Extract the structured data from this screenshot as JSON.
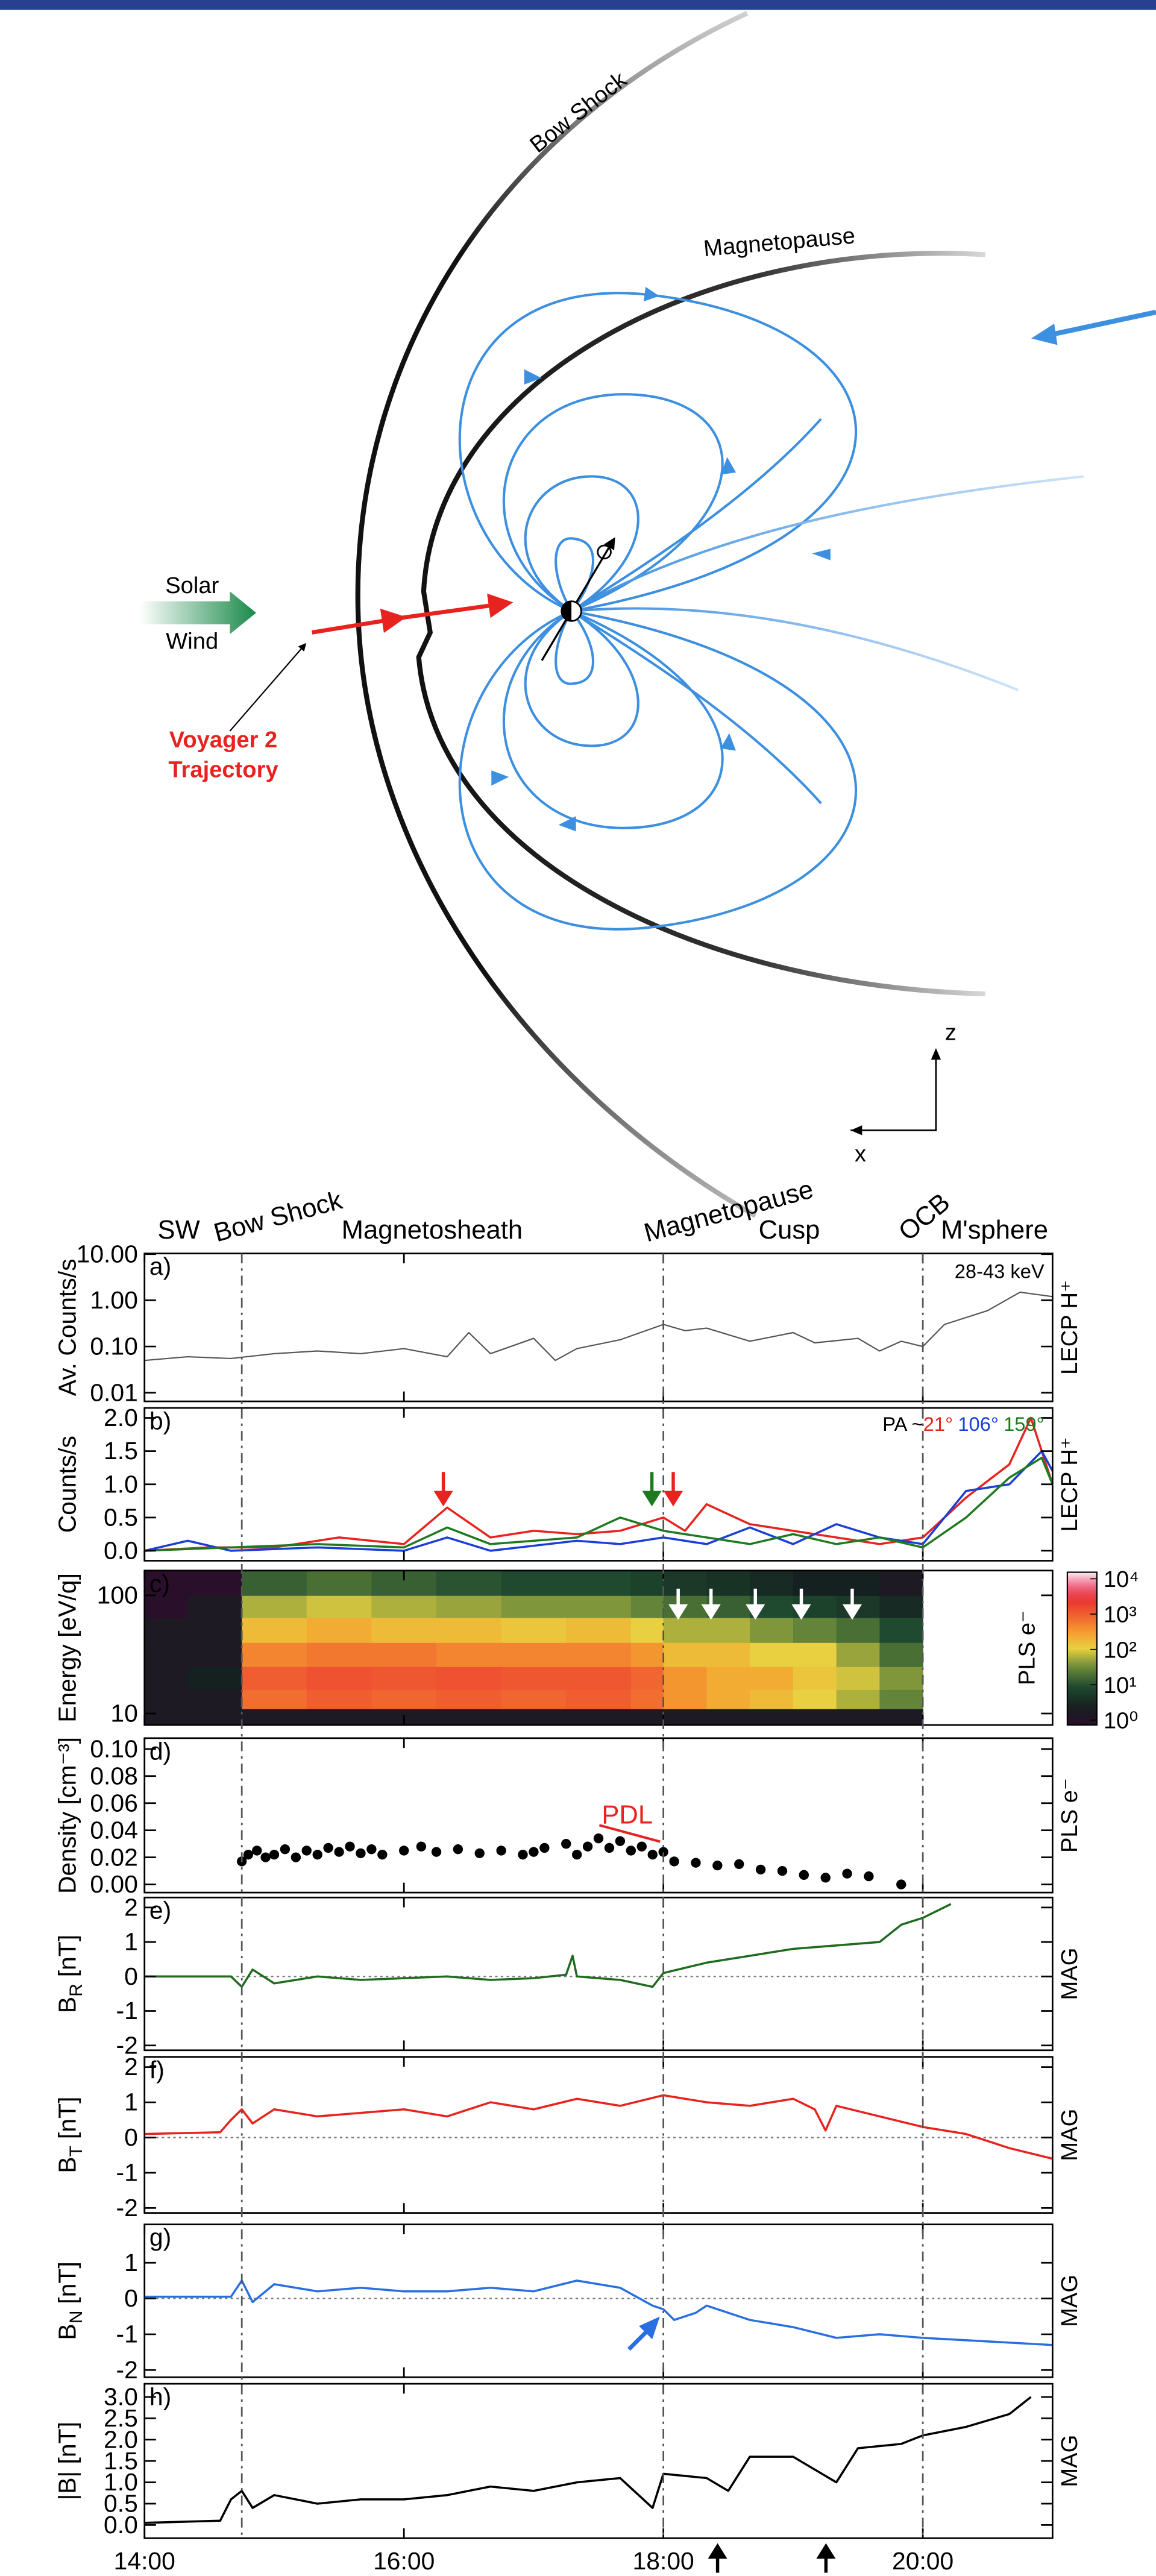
{
  "diagram": {
    "bow_shock": "Bow Shock",
    "magnetopause": "Magnetopause",
    "solar": "Solar",
    "wind": "Wind",
    "voyager": "Voyager 2",
    "trajectory": "Trajectory",
    "axis_z": "z",
    "axis_x": "x"
  },
  "regions": [
    "SW",
    "Bow Shock",
    "Magnetosheath",
    "Magnetopause",
    "Cusp",
    "OCB",
    "M'sphere"
  ],
  "boundaries": [
    "14:45",
    "18:00",
    "20:00"
  ],
  "chart_data": [
    {
      "type": "line",
      "label": "a)",
      "ylabel": "Av. Counts/s",
      "instrument": "LECP H⁺",
      "annotation": "28-43 keV",
      "log_y": true,
      "xlim": [
        "14:00",
        "21:00"
      ],
      "ylim": [
        0.0065,
        10.3
      ],
      "yticks": [
        {
          "value": 10,
          "label": "10.00"
        },
        {
          "value": 1,
          "label": "1.00"
        },
        {
          "value": 0.1,
          "label": "0.10"
        },
        0.01
      ],
      "series": [
        {
          "color": "#555555",
          "x": [
            "14:00",
            "14:20",
            "14:40",
            "15:00",
            "15:20",
            "15:40",
            "16:00",
            "16:20",
            "16:30",
            "16:40",
            "17:00",
            "17:10",
            "17:20",
            "17:40",
            "18:00",
            "18:10",
            "18:20",
            "18:40",
            "19:00",
            "19:10",
            "19:30",
            "19:40",
            "19:50",
            "20:00",
            "20:10",
            "20:30",
            "20:45",
            "21:00"
          ],
          "values": [
            0.05,
            0.06,
            0.055,
            0.07,
            0.08,
            0.07,
            0.09,
            0.06,
            0.2,
            0.07,
            0.15,
            0.05,
            0.09,
            0.14,
            0.3,
            0.22,
            0.25,
            0.13,
            0.2,
            0.12,
            0.15,
            0.08,
            0.13,
            0.1,
            0.3,
            0.6,
            1.5,
            1.2
          ]
        }
      ]
    },
    {
      "type": "line",
      "label": "b)",
      "ylabel": "Counts/s",
      "instrument": "LECP H⁺",
      "legend_prefix": "PA ~",
      "xlim": [
        "14:00",
        "21:00"
      ],
      "ylim": [
        -0.15,
        2.15
      ],
      "yticks": [
        {
          "value": 0,
          "label": "0.0"
        },
        0.5,
        {
          "value": 1,
          "label": "1.0"
        },
        1.5,
        {
          "value": 2,
          "label": "2.0"
        }
      ],
      "series": [
        {
          "name": "21°",
          "color": "#e8231f",
          "x": [
            "14:00",
            "14:30",
            "15:00",
            "15:30",
            "16:00",
            "16:20",
            "16:40",
            "17:00",
            "17:20",
            "17:40",
            "18:00",
            "18:10",
            "18:20",
            "18:40",
            "19:00",
            "19:20",
            "19:40",
            "20:00",
            "20:20",
            "20:40",
            "20:50",
            "21:00"
          ],
          "values": [
            0.0,
            0.05,
            0.05,
            0.2,
            0.1,
            0.65,
            0.2,
            0.3,
            0.25,
            0.3,
            0.5,
            0.3,
            0.7,
            0.4,
            0.3,
            0.2,
            0.1,
            0.2,
            0.8,
            1.3,
            2.0,
            1.0
          ]
        },
        {
          "name": "106°",
          "color": "#1a3fd8",
          "x": [
            "14:00",
            "14:20",
            "14:40",
            "15:20",
            "16:00",
            "16:20",
            "16:40",
            "17:20",
            "17:40",
            "18:00",
            "18:20",
            "18:40",
            "19:00",
            "19:20",
            "19:40",
            "20:00",
            "20:20",
            "20:40",
            "20:55",
            "21:00"
          ],
          "values": [
            0.0,
            0.15,
            0.0,
            0.05,
            0.0,
            0.2,
            0.0,
            0.15,
            0.1,
            0.2,
            0.1,
            0.35,
            0.1,
            0.4,
            0.2,
            0.1,
            0.9,
            1.0,
            1.5,
            1.2
          ]
        },
        {
          "name": "159°",
          "color": "#1e7a1e",
          "x": [
            "14:00",
            "14:40",
            "15:20",
            "16:00",
            "16:20",
            "16:40",
            "17:20",
            "17:40",
            "18:00",
            "18:20",
            "18:40",
            "19:00",
            "19:20",
            "19:40",
            "20:00",
            "20:20",
            "20:40",
            "20:55",
            "21:00"
          ],
          "values": [
            0.0,
            0.05,
            0.1,
            0.05,
            0.35,
            0.1,
            0.2,
            0.5,
            0.3,
            0.2,
            0.1,
            0.25,
            0.1,
            0.2,
            0.05,
            0.5,
            1.1,
            1.4,
            1.0
          ]
        }
      ]
    },
    {
      "type": "heatmap",
      "label": "c)",
      "ylabel": "Energy [eV/q]",
      "instrument": "PLS e⁻",
      "log_y": true,
      "xlim": [
        "14:00",
        "21:00"
      ],
      "ylim": [
        8,
        162
      ],
      "yticks": [
        10,
        100
      ],
      "clim": [
        1,
        10000
      ],
      "cticks": [
        {
          "value": 1,
          "label": "10⁰"
        },
        {
          "value": 10,
          "label": "10¹"
        },
        {
          "value": 100,
          "label": "10²"
        },
        {
          "value": 1000,
          "label": "10³"
        },
        {
          "value": 10000,
          "label": "10⁴"
        }
      ],
      "x_edges": [
        "14:00",
        "14:20",
        "14:45",
        "15:15",
        "15:45",
        "16:15",
        "16:45",
        "17:15",
        "17:45",
        "18:00",
        "18:20",
        "18:40",
        "19:00",
        "19:20",
        "19:40",
        "20:00"
      ],
      "y_edges": [
        8,
        11,
        16,
        25,
        40,
        65,
        100,
        162
      ],
      "z": [
        [
          2,
          2,
          2,
          2,
          2,
          2,
          2,
          2,
          2,
          2,
          2,
          2,
          2,
          2,
          2
        ],
        [
          2,
          2,
          600,
          800,
          700,
          800,
          700,
          800,
          600,
          300,
          200,
          150,
          100,
          60,
          30
        ],
        [
          2,
          3,
          800,
          1000,
          900,
          1000,
          900,
          900,
          700,
          300,
          200,
          200,
          120,
          80,
          40
        ],
        [
          2,
          2,
          400,
          500,
          500,
          400,
          400,
          400,
          300,
          150,
          150,
          100,
          100,
          50,
          20
        ],
        [
          2,
          2,
          150,
          200,
          150,
          150,
          120,
          150,
          100,
          60,
          60,
          40,
          30,
          20,
          10
        ],
        [
          1,
          2,
          60,
          80,
          60,
          50,
          40,
          40,
          30,
          20,
          15,
          10,
          8,
          6,
          4
        ],
        [
          1,
          1,
          15,
          20,
          15,
          12,
          10,
          10,
          8,
          6,
          5,
          4,
          3,
          3,
          2
        ]
      ]
    },
    {
      "type": "scatter",
      "label": "d)",
      "ylabel": "Density [cm⁻³]",
      "instrument": "PLS e⁻",
      "annotation": "PDL",
      "xlim": [
        "14:00",
        "21:00"
      ],
      "ylim": [
        -0.006,
        0.108
      ],
      "yticks": [
        {
          "value": 0,
          "label": "0.00"
        },
        0.02,
        0.04,
        0.06,
        0.08,
        {
          "value": 0.1,
          "label": "0.10"
        }
      ],
      "color": "#000000",
      "x": [
        "14:45",
        "14:48",
        "14:52",
        "14:56",
        "15:00",
        "15:05",
        "15:10",
        "15:15",
        "15:20",
        "15:25",
        "15:30",
        "15:35",
        "15:40",
        "15:45",
        "15:50",
        "16:00",
        "16:08",
        "16:15",
        "16:25",
        "16:35",
        "16:45",
        "16:55",
        "17:00",
        "17:05",
        "17:15",
        "17:20",
        "17:25",
        "17:30",
        "17:35",
        "17:40",
        "17:45",
        "17:50",
        "17:55",
        "18:00",
        "18:05",
        "18:15",
        "18:25",
        "18:35",
        "18:45",
        "18:55",
        "19:05",
        "19:15",
        "19:25",
        "19:35",
        "19:50"
      ],
      "values": [
        0.017,
        0.022,
        0.025,
        0.02,
        0.022,
        0.026,
        0.02,
        0.025,
        0.022,
        0.027,
        0.024,
        0.028,
        0.023,
        0.026,
        0.022,
        0.025,
        0.028,
        0.024,
        0.026,
        0.023,
        0.025,
        0.022,
        0.024,
        0.027,
        0.03,
        0.022,
        0.028,
        0.034,
        0.027,
        0.032,
        0.025,
        0.028,
        0.022,
        0.024,
        0.017,
        0.016,
        0.014,
        0.015,
        0.011,
        0.01,
        0.007,
        0.005,
        0.008,
        0.006,
        0.0
      ]
    },
    {
      "type": "line",
      "label": "e)",
      "ylabel": "B",
      "ylabel_sub": "R",
      "ylabel_unit": "[nT]",
      "instrument": "MAG",
      "zero_line": true,
      "xlim": [
        "14:00",
        "21:00"
      ],
      "ylim": [
        -2.14,
        2.29
      ],
      "yticks": [
        -2,
        -1,
        0,
        1,
        2
      ],
      "series": [
        {
          "color": "#1f6b1f",
          "x": [
            "14:00",
            "14:40",
            "14:45",
            "14:50",
            "15:00",
            "15:20",
            "15:40",
            "16:00",
            "16:20",
            "16:40",
            "17:00",
            "17:15",
            "17:18",
            "17:20",
            "17:40",
            "17:55",
            "18:00",
            "18:20",
            "18:40",
            "19:00",
            "19:20",
            "19:40",
            "19:50",
            "20:00",
            "20:13"
          ],
          "values": [
            0,
            0,
            -0.3,
            0.2,
            -0.2,
            0,
            -0.1,
            -0.05,
            0,
            -0.1,
            -0.05,
            0.05,
            0.6,
            0,
            -0.1,
            -0.3,
            0.1,
            0.4,
            0.6,
            0.8,
            0.9,
            1.0,
            1.5,
            1.7,
            2.1
          ]
        }
      ]
    },
    {
      "type": "line",
      "label": "f)",
      "ylabel": "B",
      "ylabel_sub": "T",
      "ylabel_unit": "[nT]",
      "instrument": "MAG",
      "zero_line": true,
      "xlim": [
        "14:00",
        "21:00"
      ],
      "ylim": [
        -2.14,
        2.29
      ],
      "yticks": [
        -2,
        -1,
        0,
        1,
        2
      ],
      "series": [
        {
          "color": "#e8231f",
          "x": [
            "14:00",
            "14:35",
            "14:40",
            "14:45",
            "14:50",
            "15:00",
            "15:20",
            "15:40",
            "16:00",
            "16:20",
            "16:40",
            "17:00",
            "17:20",
            "17:40",
            "18:00",
            "18:20",
            "18:40",
            "19:00",
            "19:10",
            "19:15",
            "19:20",
            "19:40",
            "20:00",
            "20:20",
            "20:40",
            "21:00"
          ],
          "values": [
            0.1,
            0.15,
            0.5,
            0.8,
            0.4,
            0.8,
            0.6,
            0.7,
            0.8,
            0.6,
            1.0,
            0.8,
            1.1,
            0.9,
            1.2,
            1.0,
            0.9,
            1.1,
            0.8,
            0.2,
            0.9,
            0.6,
            0.3,
            0.1,
            -0.3,
            -0.6
          ]
        }
      ]
    },
    {
      "type": "line",
      "label": "g)",
      "ylabel": "B",
      "ylabel_sub": "N",
      "ylabel_unit": "[nT]",
      "instrument": "MAG",
      "zero_line": true,
      "xlim": [
        "14:00",
        "21:00"
      ],
      "ylim": [
        -2.2,
        2.07
      ],
      "yticks": [
        -2,
        -1,
        0,
        1
      ],
      "series": [
        {
          "color": "#2a6fe0",
          "x": [
            "14:00",
            "14:40",
            "14:45",
            "14:50",
            "15:00",
            "15:20",
            "15:40",
            "16:00",
            "16:20",
            "16:40",
            "17:00",
            "17:20",
            "17:40",
            "17:55",
            "18:00",
            "18:05",
            "18:15",
            "18:20",
            "18:40",
            "19:00",
            "19:20",
            "19:40",
            "20:00",
            "20:30",
            "21:00"
          ],
          "values": [
            0.05,
            0.05,
            0.5,
            -0.1,
            0.4,
            0.2,
            0.3,
            0.2,
            0.2,
            0.3,
            0.2,
            0.5,
            0.3,
            -0.2,
            -0.3,
            -0.6,
            -0.4,
            -0.2,
            -0.6,
            -0.8,
            -1.1,
            -1.0,
            -1.1,
            -1.2,
            -1.3
          ]
        }
      ]
    },
    {
      "type": "line",
      "label": "h)",
      "ylabel": "|B| [nT]",
      "instrument": "MAG",
      "xlim": [
        "14:00",
        "21:00"
      ],
      "ylim": [
        -0.31,
        3.31
      ],
      "yticks": [
        {
          "value": 0,
          "label": "0.0"
        },
        0.5,
        {
          "value": 1,
          "label": "1.0"
        },
        1.5,
        {
          "value": 2,
          "label": "2.0"
        },
        2.5,
        {
          "value": 3,
          "label": "3.0"
        }
      ],
      "xticks": [
        "14:00",
        "16:00",
        "18:00",
        "20:00"
      ],
      "series": [
        {
          "color": "#000000",
          "x": [
            "14:00",
            "14:35",
            "14:40",
            "14:45",
            "14:50",
            "15:00",
            "15:20",
            "15:40",
            "16:00",
            "16:20",
            "16:40",
            "17:00",
            "17:20",
            "17:40",
            "17:55",
            "18:00",
            "18:20",
            "18:30",
            "18:40",
            "19:00",
            "19:10",
            "19:20",
            "19:30",
            "19:50",
            "20:00",
            "20:20",
            "20:40",
            "20:50"
          ],
          "values": [
            0.05,
            0.1,
            0.6,
            0.8,
            0.4,
            0.7,
            0.5,
            0.6,
            0.6,
            0.7,
            0.9,
            0.8,
            1.0,
            1.1,
            0.4,
            1.2,
            1.1,
            0.8,
            1.6,
            1.6,
            1.3,
            1.0,
            1.8,
            1.9,
            2.1,
            2.3,
            2.6,
            3.0
          ]
        }
      ]
    }
  ]
}
